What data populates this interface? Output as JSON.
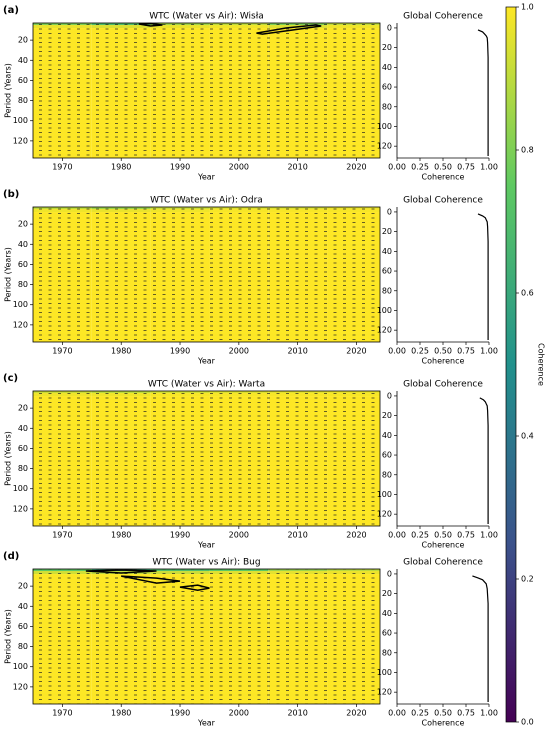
{
  "chart_data": [
    {
      "type": "heatmap",
      "panel": "(a)",
      "title": "WTC (Water vs Air): Wisła",
      "xlabel": "Year",
      "ylabel": "Period (Years)",
      "xlim": [
        1965,
        2024
      ],
      "ylim": [
        3,
        137
      ],
      "y_inverted": true,
      "xticks": [
        1970,
        1980,
        1990,
        2000,
        2010,
        2020
      ],
      "yticks": [
        20,
        40,
        60,
        80,
        100,
        120
      ],
      "x": [
        1965,
        1975,
        1985,
        1995,
        2005,
        2015,
        2024
      ],
      "y": [
        3,
        5,
        8,
        137
      ],
      "z": [
        [
          0.8,
          0.7,
          0.85,
          0.9,
          0.8,
          0.9
        ],
        [
          0.97,
          0.95,
          0.97,
          0.98,
          0.95,
          0.98
        ],
        [
          1,
          1,
          1,
          1,
          1,
          1
        ]
      ],
      "contours": [
        {
          "x": [
            1983,
            1985,
            1987,
            1985,
            1983
          ],
          "y": [
            4,
            3.5,
            5,
            6,
            4
          ]
        },
        {
          "x": [
            2003,
            2008,
            2013,
            2014,
            2009,
            2004,
            2003
          ],
          "y": [
            13,
            8,
            5,
            6,
            10,
            14,
            13
          ]
        }
      ]
    },
    {
      "type": "line",
      "title": "Global Coherence",
      "xlabel": "Coherence",
      "xlim": [
        0,
        1
      ],
      "ylim": [
        -5,
        132
      ],
      "y_inverted": true,
      "xticks": [
        {
          "value": 0,
          "label": "0.00"
        },
        {
          "value": 0.25,
          "label": "0.25"
        },
        {
          "value": 0.5,
          "label": "0.50"
        },
        {
          "value": 0.75,
          "label": "0.75"
        },
        {
          "value": 1,
          "label": "1.00"
        }
      ],
      "yticks": [
        0,
        20,
        40,
        60,
        80,
        100,
        120
      ],
      "periods": [
        2,
        4,
        6,
        8,
        10,
        15,
        30,
        60,
        130
      ],
      "values": [
        0.88,
        0.93,
        0.95,
        0.97,
        0.98,
        0.985,
        0.99,
        0.99,
        0.99
      ]
    },
    {
      "type": "heatmap",
      "panel": "(b)",
      "title": "WTC (Water vs Air): Odra",
      "xlabel": "Year",
      "ylabel": "Period (Years)",
      "xlim": [
        1965,
        2024
      ],
      "ylim": [
        3,
        137
      ],
      "y_inverted": true,
      "xticks": [
        1970,
        1980,
        1990,
        2000,
        2010,
        2020
      ],
      "yticks": [
        20,
        40,
        60,
        80,
        100,
        120
      ],
      "x": [
        1965,
        1975,
        1985,
        1995,
        2005,
        2015,
        2024
      ],
      "y": [
        3,
        5,
        8,
        137
      ],
      "z": [
        [
          0.9,
          0.85,
          0.92,
          0.95,
          0.95,
          0.97
        ],
        [
          0.98,
          0.97,
          0.98,
          0.99,
          0.99,
          0.99
        ],
        [
          1,
          1,
          1,
          1,
          1,
          1
        ]
      ],
      "contours": []
    },
    {
      "type": "line",
      "title": "Global Coherence",
      "xlabel": "Coherence",
      "xlim": [
        0,
        1
      ],
      "ylim": [
        -5,
        132
      ],
      "y_inverted": true,
      "xticks": [
        {
          "value": 0,
          "label": "0.00"
        },
        {
          "value": 0.25,
          "label": "0.25"
        },
        {
          "value": 0.5,
          "label": "0.50"
        },
        {
          "value": 0.75,
          "label": "0.75"
        },
        {
          "value": 1,
          "label": "1.00"
        }
      ],
      "yticks": [
        0,
        20,
        40,
        60,
        80,
        100,
        120
      ],
      "periods": [
        2,
        4,
        6,
        8,
        10,
        15,
        30,
        60,
        130
      ],
      "values": [
        0.88,
        0.93,
        0.96,
        0.97,
        0.98,
        0.985,
        0.99,
        0.99,
        0.99
      ]
    },
    {
      "type": "heatmap",
      "panel": "(c)",
      "title": "WTC (Water vs Air): Warta",
      "xlabel": "Year",
      "ylabel": "Period (Years)",
      "xlim": [
        1965,
        2024
      ],
      "ylim": [
        3,
        137
      ],
      "y_inverted": true,
      "xticks": [
        1970,
        1980,
        1990,
        2000,
        2010,
        2020
      ],
      "yticks": [
        20,
        40,
        60,
        80,
        100,
        120
      ],
      "x": [
        1965,
        1975,
        1985,
        1995,
        2005,
        2015,
        2024
      ],
      "y": [
        3,
        5,
        8,
        137
      ],
      "z": [
        [
          0.92,
          0.9,
          0.93,
          0.95,
          0.96,
          0.97
        ],
        [
          0.98,
          0.98,
          0.99,
          0.99,
          0.99,
          0.99
        ],
        [
          1,
          1,
          1,
          1,
          1,
          1
        ]
      ],
      "contours": []
    },
    {
      "type": "line",
      "title": "Global Coherence",
      "xlabel": "Coherence",
      "xlim": [
        0,
        1
      ],
      "ylim": [
        -5,
        132
      ],
      "y_inverted": true,
      "xticks": [
        {
          "value": 0,
          "label": "0.00"
        },
        {
          "value": 0.25,
          "label": "0.25"
        },
        {
          "value": 0.5,
          "label": "0.50"
        },
        {
          "value": 0.75,
          "label": "0.75"
        },
        {
          "value": 1,
          "label": "1.00"
        }
      ],
      "yticks": [
        0,
        20,
        40,
        60,
        80,
        100,
        120
      ],
      "periods": [
        2,
        4,
        6,
        8,
        10,
        15,
        30,
        60,
        130
      ],
      "values": [
        0.9,
        0.94,
        0.96,
        0.97,
        0.98,
        0.985,
        0.99,
        0.99,
        0.99
      ]
    },
    {
      "type": "heatmap",
      "panel": "(d)",
      "title": "WTC (Water vs Air): Bug",
      "xlabel": "Year",
      "ylabel": "Period (Years)",
      "xlim": [
        1965,
        2024
      ],
      "ylim": [
        3,
        137
      ],
      "y_inverted": true,
      "xticks": [
        1970,
        1980,
        1990,
        2000,
        2010,
        2020
      ],
      "yticks": [
        20,
        40,
        60,
        80,
        100,
        120
      ],
      "x": [
        1965,
        1975,
        1985,
        1995,
        2005,
        2015,
        2024
      ],
      "y": [
        3,
        5,
        8,
        137
      ],
      "z": [
        [
          0.75,
          0.6,
          0.7,
          0.75,
          0.85,
          0.9
        ],
        [
          0.93,
          0.9,
          0.92,
          0.95,
          0.96,
          0.97
        ],
        [
          1,
          1,
          1,
          1,
          1,
          1
        ]
      ],
      "contours": [
        {
          "x": [
            1974,
            1980,
            1986,
            1980,
            1974
          ],
          "y": [
            5,
            4,
            5,
            7,
            5
          ]
        },
        {
          "x": [
            1980,
            1986,
            1990,
            1986,
            1980
          ],
          "y": [
            10,
            12,
            15,
            17,
            10
          ]
        },
        {
          "x": [
            1990,
            1993,
            1995,
            1993,
            1990
          ],
          "y": [
            21,
            19,
            22,
            24,
            21
          ]
        }
      ]
    },
    {
      "type": "line",
      "title": "Global Coherence",
      "xlabel": "Coherence",
      "xlim": [
        0,
        1
      ],
      "ylim": [
        -5,
        132
      ],
      "y_inverted": true,
      "xticks": [
        {
          "value": 0,
          "label": "0.00"
        },
        {
          "value": 0.25,
          "label": "0.25"
        },
        {
          "value": 0.5,
          "label": "0.50"
        },
        {
          "value": 0.75,
          "label": "0.75"
        },
        {
          "value": 1,
          "label": "1.00"
        }
      ],
      "yticks": [
        0,
        20,
        40,
        60,
        80,
        100,
        120
      ],
      "periods": [
        2,
        4,
        6,
        8,
        10,
        15,
        30,
        60,
        130
      ],
      "values": [
        0.82,
        0.88,
        0.93,
        0.95,
        0.97,
        0.98,
        0.99,
        0.99,
        0.99
      ]
    },
    {
      "type": "colorbar",
      "label": "Coherence",
      "ylim": [
        0,
        1
      ],
      "yticks": [
        {
          "value": 0,
          "label": "0.0"
        },
        0.2,
        0.4,
        0.6,
        0.8,
        {
          "value": 1,
          "label": "1.0"
        }
      ]
    }
  ]
}
